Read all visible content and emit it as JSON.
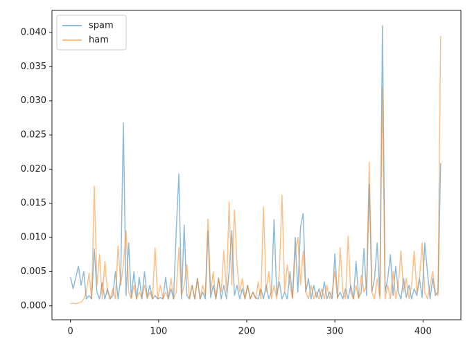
{
  "chart_data": {
    "type": "line",
    "x": [
      0,
      3,
      6,
      9,
      12,
      15,
      18,
      21,
      24,
      27,
      30,
      33,
      36,
      39,
      42,
      45,
      48,
      51,
      54,
      57,
      60,
      63,
      66,
      69,
      72,
      75,
      78,
      81,
      84,
      87,
      90,
      93,
      96,
      99,
      102,
      105,
      108,
      111,
      114,
      117,
      120,
      123,
      126,
      129,
      132,
      135,
      138,
      141,
      144,
      147,
      150,
      153,
      156,
      159,
      162,
      165,
      168,
      171,
      174,
      177,
      180,
      183,
      186,
      189,
      192,
      195,
      198,
      201,
      204,
      207,
      210,
      213,
      216,
      219,
      222,
      225,
      228,
      231,
      234,
      237,
      240,
      243,
      246,
      249,
      252,
      255,
      258,
      261,
      264,
      267,
      270,
      273,
      276,
      279,
      282,
      285,
      288,
      291,
      294,
      297,
      300,
      303,
      306,
      309,
      312,
      315,
      318,
      321,
      324,
      327,
      330,
      333,
      336,
      339,
      342,
      345,
      348,
      351,
      354,
      357,
      360,
      363,
      366,
      369,
      372,
      375,
      378,
      381,
      384,
      387,
      390,
      393,
      396,
      399,
      402,
      405,
      408,
      411,
      414,
      417,
      420
    ],
    "series": [
      {
        "name": "spam",
        "color": "#1f77b4",
        "values": [
          0.0042,
          0.0025,
          0.0041,
          0.0058,
          0.003,
          0.005,
          0.001,
          0.0015,
          0.001,
          0.0083,
          0.002,
          0.001,
          0.0034,
          0.001,
          0.0025,
          0.001,
          0.0015,
          0.005,
          0.001,
          0.004,
          0.0268,
          0.0015,
          0.0092,
          0.0012,
          0.005,
          0.001,
          0.0042,
          0.001,
          0.005,
          0.0012,
          0.003,
          0.001,
          0.0015,
          0.001,
          0.0012,
          0.001,
          0.0042,
          0.001,
          0.0025,
          0.001,
          0.011,
          0.0193,
          0.001,
          0.0118,
          0.0015,
          0.001,
          0.003,
          0.001,
          0.004,
          0.001,
          0.002,
          0.001,
          0.011,
          0.0012,
          0.003,
          0.001,
          0.0041,
          0.001,
          0.003,
          0.001,
          0.005,
          0.011,
          0.0015,
          0.003,
          0.001,
          0.0025,
          0.001,
          0.003,
          0.001,
          0.002,
          0.0012,
          0.001,
          0.0025,
          0.001,
          0.003,
          0.001,
          0.002,
          0.0126,
          0.0015,
          0.0035,
          0.001,
          0.002,
          0.001,
          0.005,
          0.0012,
          0.01,
          0.002,
          0.0115,
          0.0135,
          0.002,
          0.004,
          0.001,
          0.003,
          0.0012,
          0.0025,
          0.001,
          0.0035,
          0.001,
          0.002,
          0.001,
          0.0076,
          0.0012,
          0.002,
          0.001,
          0.0025,
          0.001,
          0.003,
          0.001,
          0.0065,
          0.0012,
          0.002,
          0.0084,
          0.0015,
          0.0178,
          0.002,
          0.004,
          0.0092,
          0.0015,
          0.041,
          0.002,
          0.004,
          0.0075,
          0.0015,
          0.0058,
          0.002,
          0.001,
          0.004,
          0.0012,
          0.003,
          0.001,
          0.0025,
          0.0015,
          0.004,
          0.0012,
          0.0092,
          0.005,
          0.001,
          0.004,
          0.0015,
          0.002,
          0.0209
        ]
      },
      {
        "name": "ham",
        "color": "#ff7f0e",
        "values": [
          0.0003,
          0.0004,
          0.0003,
          0.0004,
          0.0005,
          0.001,
          0.002,
          0.0048,
          0.001,
          0.0175,
          0.003,
          0.0075,
          0.001,
          0.0065,
          0.002,
          0.001,
          0.0025,
          0.001,
          0.0088,
          0.003,
          0.006,
          0.011,
          0.002,
          0.001,
          0.003,
          0.001,
          0.002,
          0.0012,
          0.003,
          0.001,
          0.002,
          0.001,
          0.0085,
          0.001,
          0.003,
          0.001,
          0.002,
          0.001,
          0.004,
          0.001,
          0.002,
          0.0085,
          0.0015,
          0.003,
          0.006,
          0.001,
          0.003,
          0.001,
          0.004,
          0.001,
          0.003,
          0.0015,
          0.0127,
          0.002,
          0.005,
          0.001,
          0.004,
          0.002,
          0.008,
          0.002,
          0.0152,
          0.003,
          0.014,
          0.006,
          0.002,
          0.004,
          0.001,
          0.003,
          0.001,
          0.002,
          0.001,
          0.0035,
          0.001,
          0.0145,
          0.002,
          0.005,
          0.001,
          0.003,
          0.001,
          0.005,
          0.0162,
          0.002,
          0.006,
          0.003,
          0.001,
          0.008,
          0.01,
          0.003,
          0.008,
          0.002,
          0.001,
          0.003,
          0.001,
          0.002,
          0.001,
          0.0025,
          0.001,
          0.003,
          0.001,
          0.002,
          0.005,
          0.001,
          0.0085,
          0.002,
          0.001,
          0.0102,
          0.002,
          0.001,
          0.003,
          0.001,
          0.0045,
          0.002,
          0.003,
          0.021,
          0.002,
          0.001,
          0.004,
          0.001,
          0.032,
          0.001,
          0.003,
          0.001,
          0.005,
          0.001,
          0.003,
          0.008,
          0.002,
          0.004,
          0.001,
          0.003,
          0.008,
          0.002,
          0.004,
          0.0092,
          0.002,
          0.001,
          0.003,
          0.005,
          0.002,
          0.0015,
          0.0395
        ]
      }
    ],
    "xlim": [
      -21,
      443
    ],
    "ylim": [
      -0.00205,
      0.04324
    ],
    "xticks": [
      0,
      100,
      200,
      300,
      400
    ],
    "yticks": [
      {
        "value": 0,
        "label": "0.000"
      },
      {
        "value": 0.005,
        "label": "0.005"
      },
      {
        "value": 0.01,
        "label": "0.010"
      },
      {
        "value": 0.015,
        "label": "0.015"
      },
      {
        "value": 0.02,
        "label": "0.020"
      },
      {
        "value": 0.025,
        "label": "0.025"
      },
      {
        "value": 0.03,
        "label": "0.030"
      },
      {
        "value": 0.035,
        "label": "0.035"
      },
      {
        "value": 0.04,
        "label": "0.040"
      }
    ],
    "legend": "upper left",
    "alpha": 0.5
  }
}
